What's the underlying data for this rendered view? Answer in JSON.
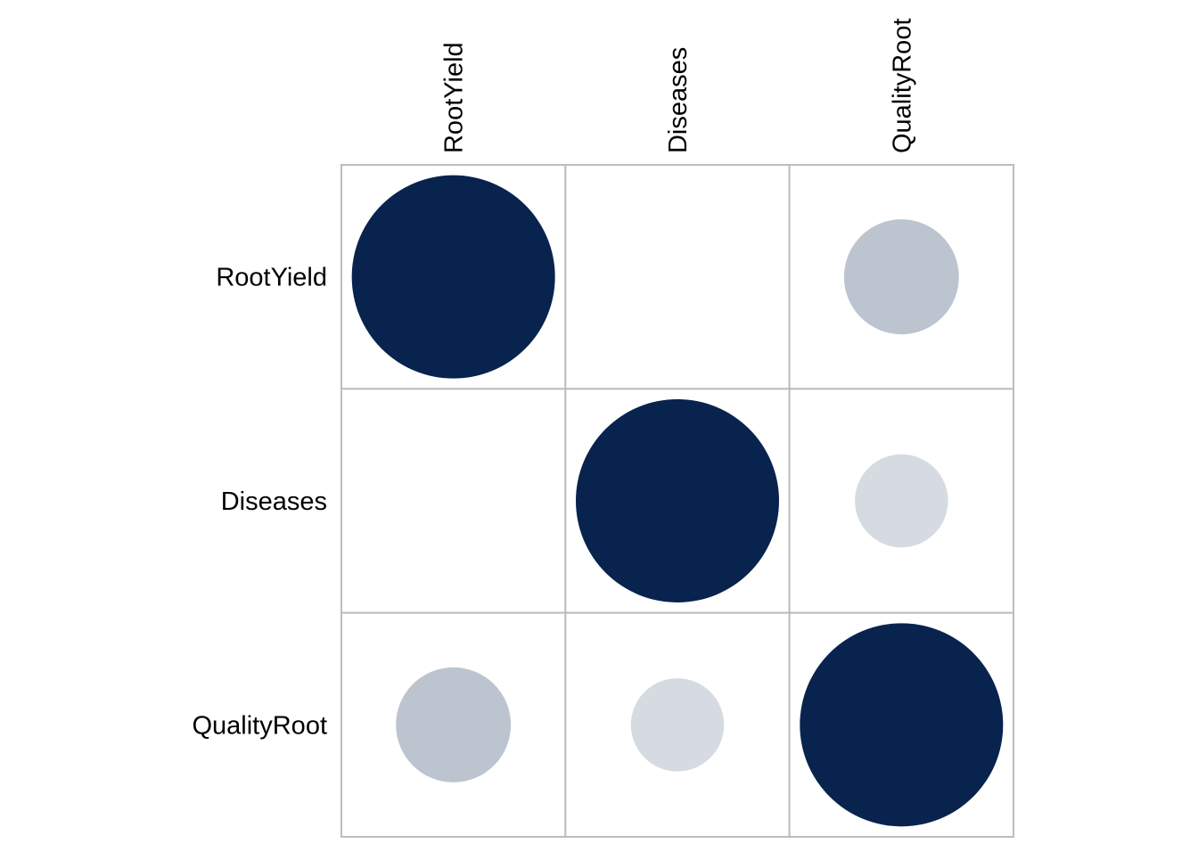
{
  "chart_data": {
    "type": "heatmap",
    "variables": [
      "RootYield",
      "Diseases",
      "QualityRoot"
    ],
    "matrix": [
      [
        1.0,
        0.01,
        0.32
      ],
      [
        0.01,
        1.0,
        0.21
      ],
      [
        0.32,
        0.21,
        1.0
      ]
    ],
    "marker": "circle",
    "color_low": "#ffffff",
    "color_high": "#08234d",
    "grid_color": "#bdbdbd",
    "grid": true,
    "legend": "none"
  }
}
